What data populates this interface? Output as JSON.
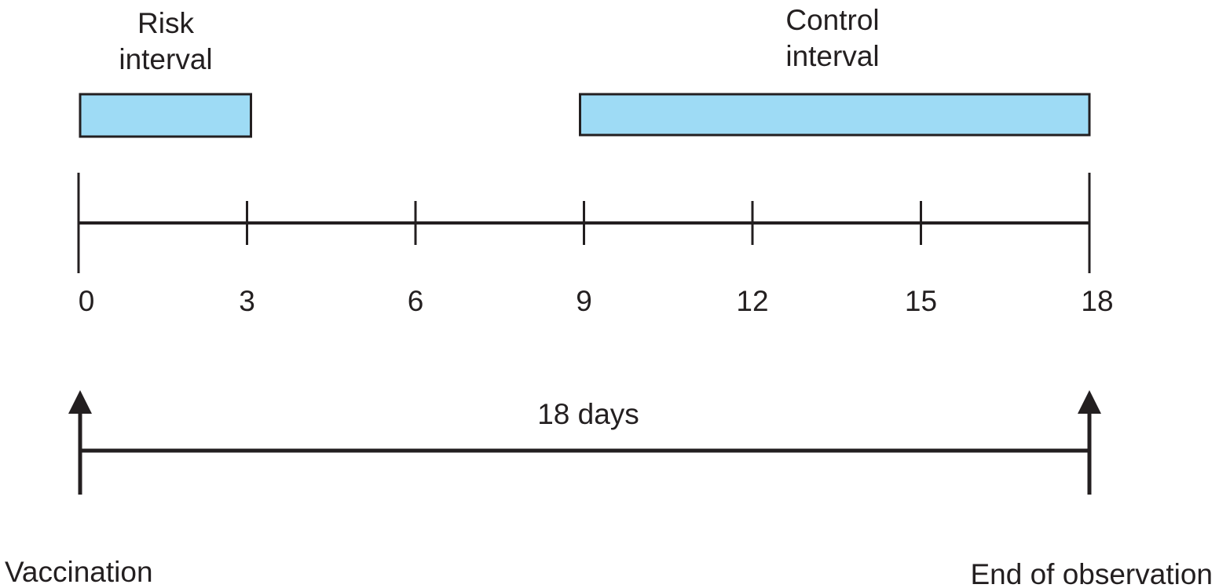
{
  "diagram": {
    "risk_interval": {
      "label_line1": "Risk",
      "label_line2": "interval",
      "start_day": 0,
      "end_day": 3
    },
    "control_interval": {
      "label_line1": "Control",
      "label_line2": "interval",
      "start_day": 9,
      "end_day": 18
    },
    "timeline": {
      "min_day": 0,
      "max_day": 18,
      "ticks": [
        "0",
        "3",
        "6",
        "9",
        "12",
        "15",
        "18"
      ]
    },
    "span_label": "18 days",
    "start_event": "Vaccination",
    "end_event": "End of observation"
  },
  "colors": {
    "interval_fill": "#9edbf5",
    "stroke": "#231f20",
    "text": "#231f20"
  }
}
